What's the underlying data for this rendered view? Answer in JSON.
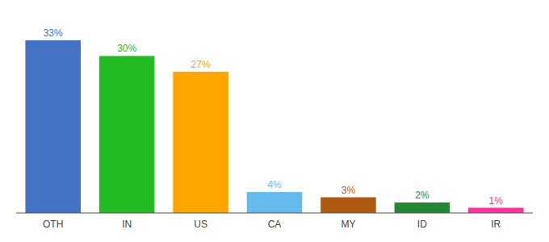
{
  "chart_data": {
    "type": "bar",
    "categories": [
      "OTH",
      "IN",
      "US",
      "CA",
      "MY",
      "ID",
      "IR"
    ],
    "values": [
      33,
      30,
      27,
      4,
      3,
      2,
      1
    ],
    "value_labels": [
      "33%",
      "30%",
      "27%",
      "4%",
      "3%",
      "2%",
      "1%"
    ],
    "colors": [
      "#4472c4",
      "#22bb22",
      "#ffa500",
      "#66bbee",
      "#b05a10",
      "#228833",
      "#ff3399"
    ],
    "ylim": [
      0,
      37
    ],
    "data_labels": true,
    "tick_labels": "x",
    "grid": false
  }
}
